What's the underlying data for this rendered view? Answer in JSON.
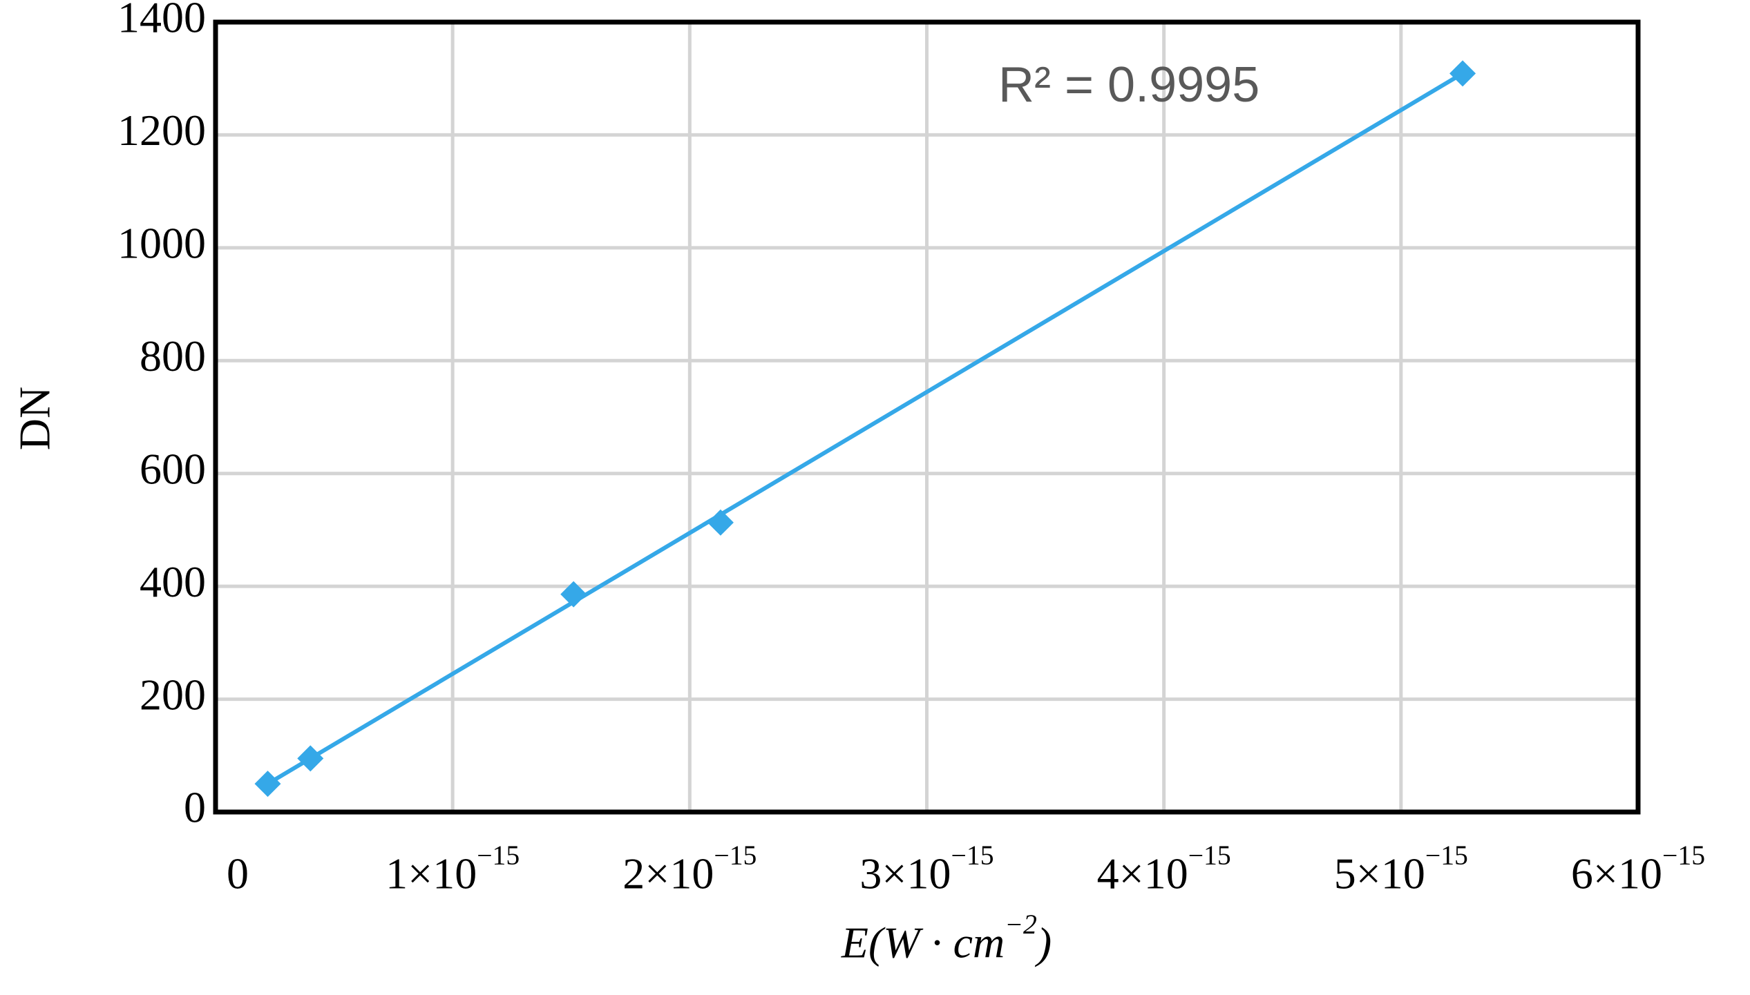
{
  "chart_data": {
    "type": "scatter",
    "x_label": "E(W · cm−2)",
    "y_label": "DN",
    "annotation": "R² = 0.9995",
    "xlim": [
      0,
      6e-15
    ],
    "ylim": [
      0,
      1400
    ],
    "xticks": [
      0,
      {
        "value": 1e-15,
        "label": "1×10−15"
      },
      {
        "value": 2e-15,
        "label": "2×10−15"
      },
      {
        "value": 3e-15,
        "label": "3×10−15"
      },
      {
        "value": 4e-15,
        "label": "4×10−15"
      },
      {
        "value": 5e-15,
        "label": "5×10−15"
      },
      {
        "value": 6e-15,
        "label": "6×10−15"
      }
    ],
    "yticks": [
      0,
      200,
      400,
      600,
      800,
      1000,
      1200,
      1400
    ],
    "grid": true,
    "series": [
      {
        "color": "#35a8e8",
        "x": [
          2.2e-16,
          4e-16,
          1.51e-15,
          2.13e-15,
          5.26e-15
        ],
        "values": [
          50,
          95,
          386,
          513,
          1309
        ]
      }
    ],
    "trendline": {
      "color": "#35a8e8",
      "x": [
        2.2e-16,
        5.26e-15
      ],
      "values": [
        50,
        1309
      ]
    }
  }
}
